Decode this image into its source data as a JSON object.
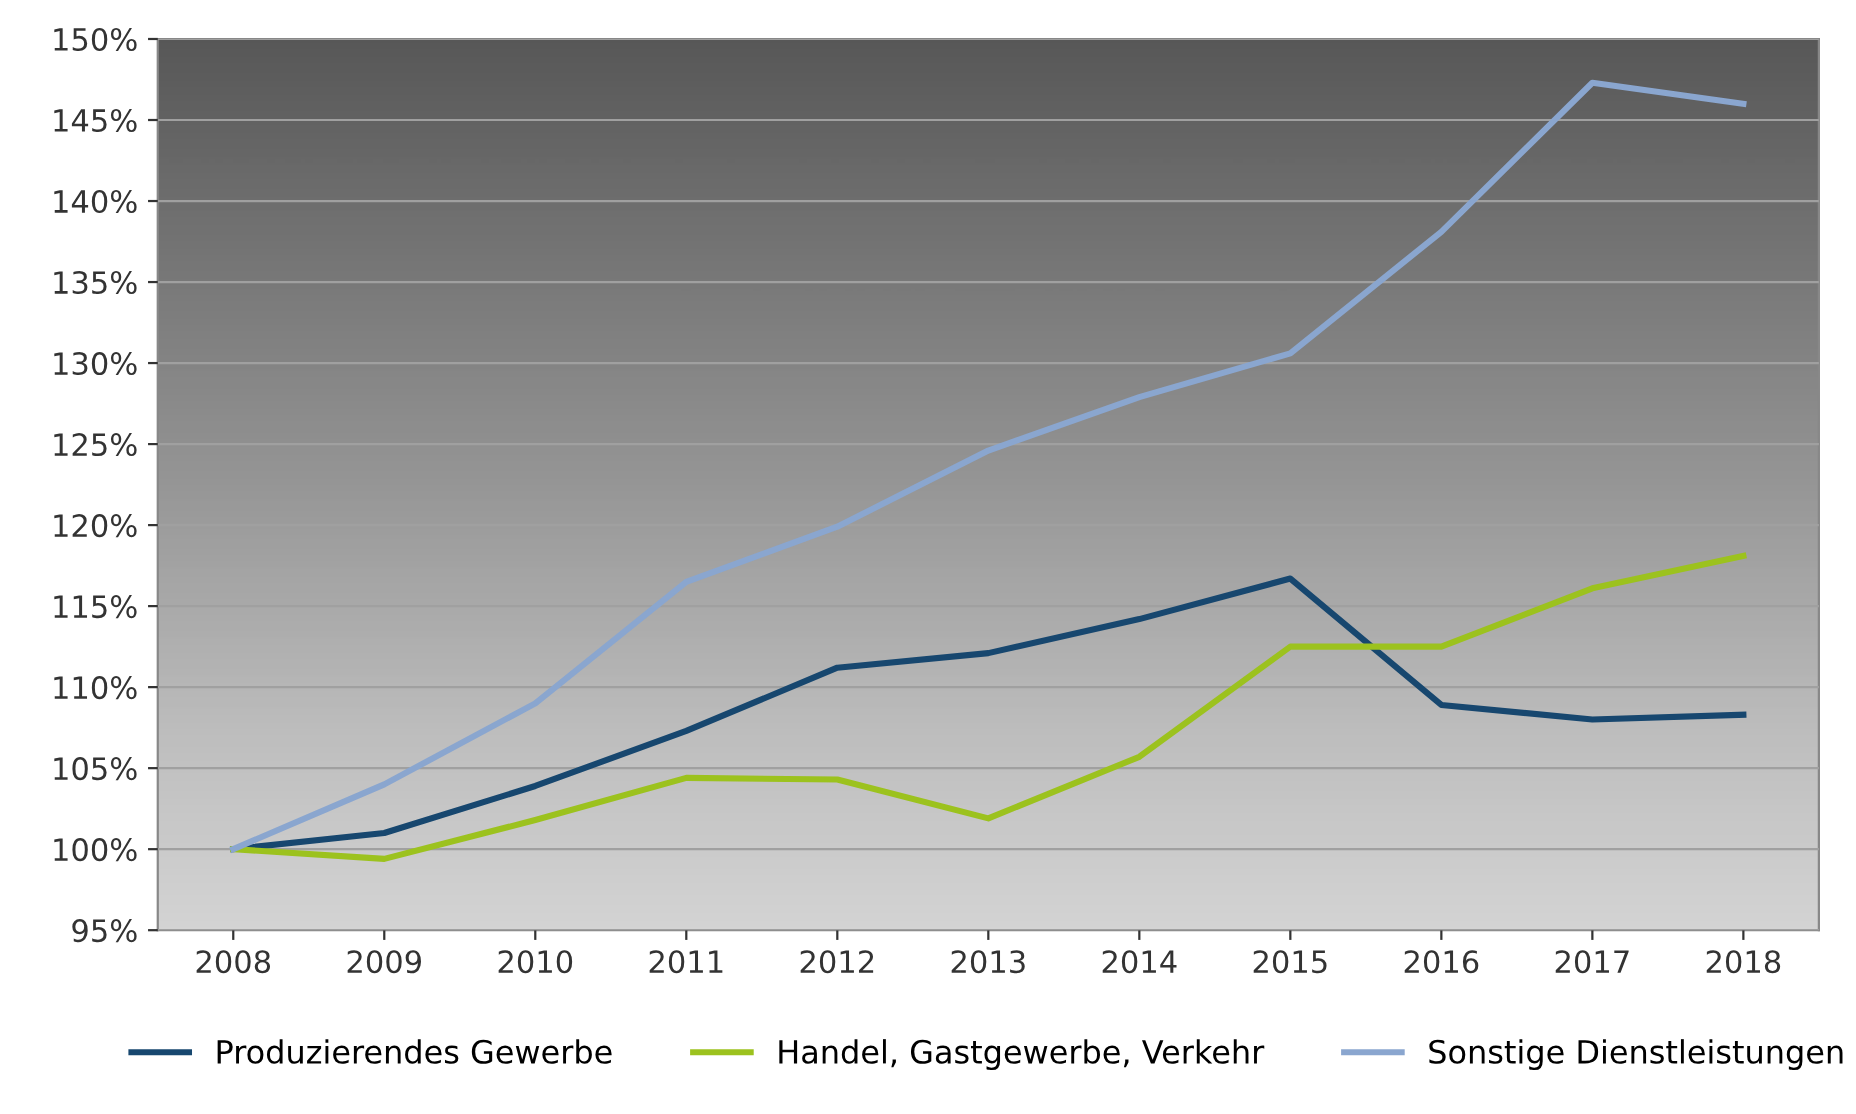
{
  "chart_data": {
    "type": "line",
    "categories": [
      "2008",
      "2009",
      "2010",
      "2011",
      "2012",
      "2013",
      "2014",
      "2015",
      "2016",
      "2017",
      "2018"
    ],
    "series": [
      {
        "name": "Produzierendes Gewerbe",
        "color": "#17476f",
        "values": [
          100,
          101.0,
          103.9,
          107.3,
          111.2,
          112.1,
          114.2,
          116.7,
          108.9,
          108.0,
          108.3
        ]
      },
      {
        "name": "Handel, Gastgewerbe, Verkehr",
        "color": "#9cc21e",
        "values": [
          100,
          99.4,
          101.8,
          104.4,
          104.3,
          101.9,
          105.7,
          112.5,
          112.5,
          116.1,
          118.1
        ]
      },
      {
        "name": "Sonstige Dienstleistungen",
        "color": "#8aa6cf",
        "values": [
          100,
          104.0,
          109.0,
          116.5,
          119.9,
          124.6,
          127.9,
          130.6,
          138.1,
          147.3,
          146.0
        ]
      }
    ],
    "ylim": [
      95,
      150
    ],
    "yticks": [
      {
        "value": 95,
        "label": "95%"
      },
      {
        "value": 100,
        "label": "100%"
      },
      {
        "value": 105,
        "label": "105%"
      },
      {
        "value": 110,
        "label": "110%"
      },
      {
        "value": 115,
        "label": "115%"
      },
      {
        "value": 120,
        "label": "120%"
      },
      {
        "value": 125,
        "label": "125%"
      },
      {
        "value": 130,
        "label": "130%"
      },
      {
        "value": 135,
        "label": "135%"
      },
      {
        "value": 140,
        "label": "140%"
      },
      {
        "value": 145,
        "label": "145%"
      },
      {
        "value": 150,
        "label": "150%"
      }
    ],
    "grid": "y",
    "legend": "bottom",
    "marker": "none",
    "line_style": "solid"
  }
}
